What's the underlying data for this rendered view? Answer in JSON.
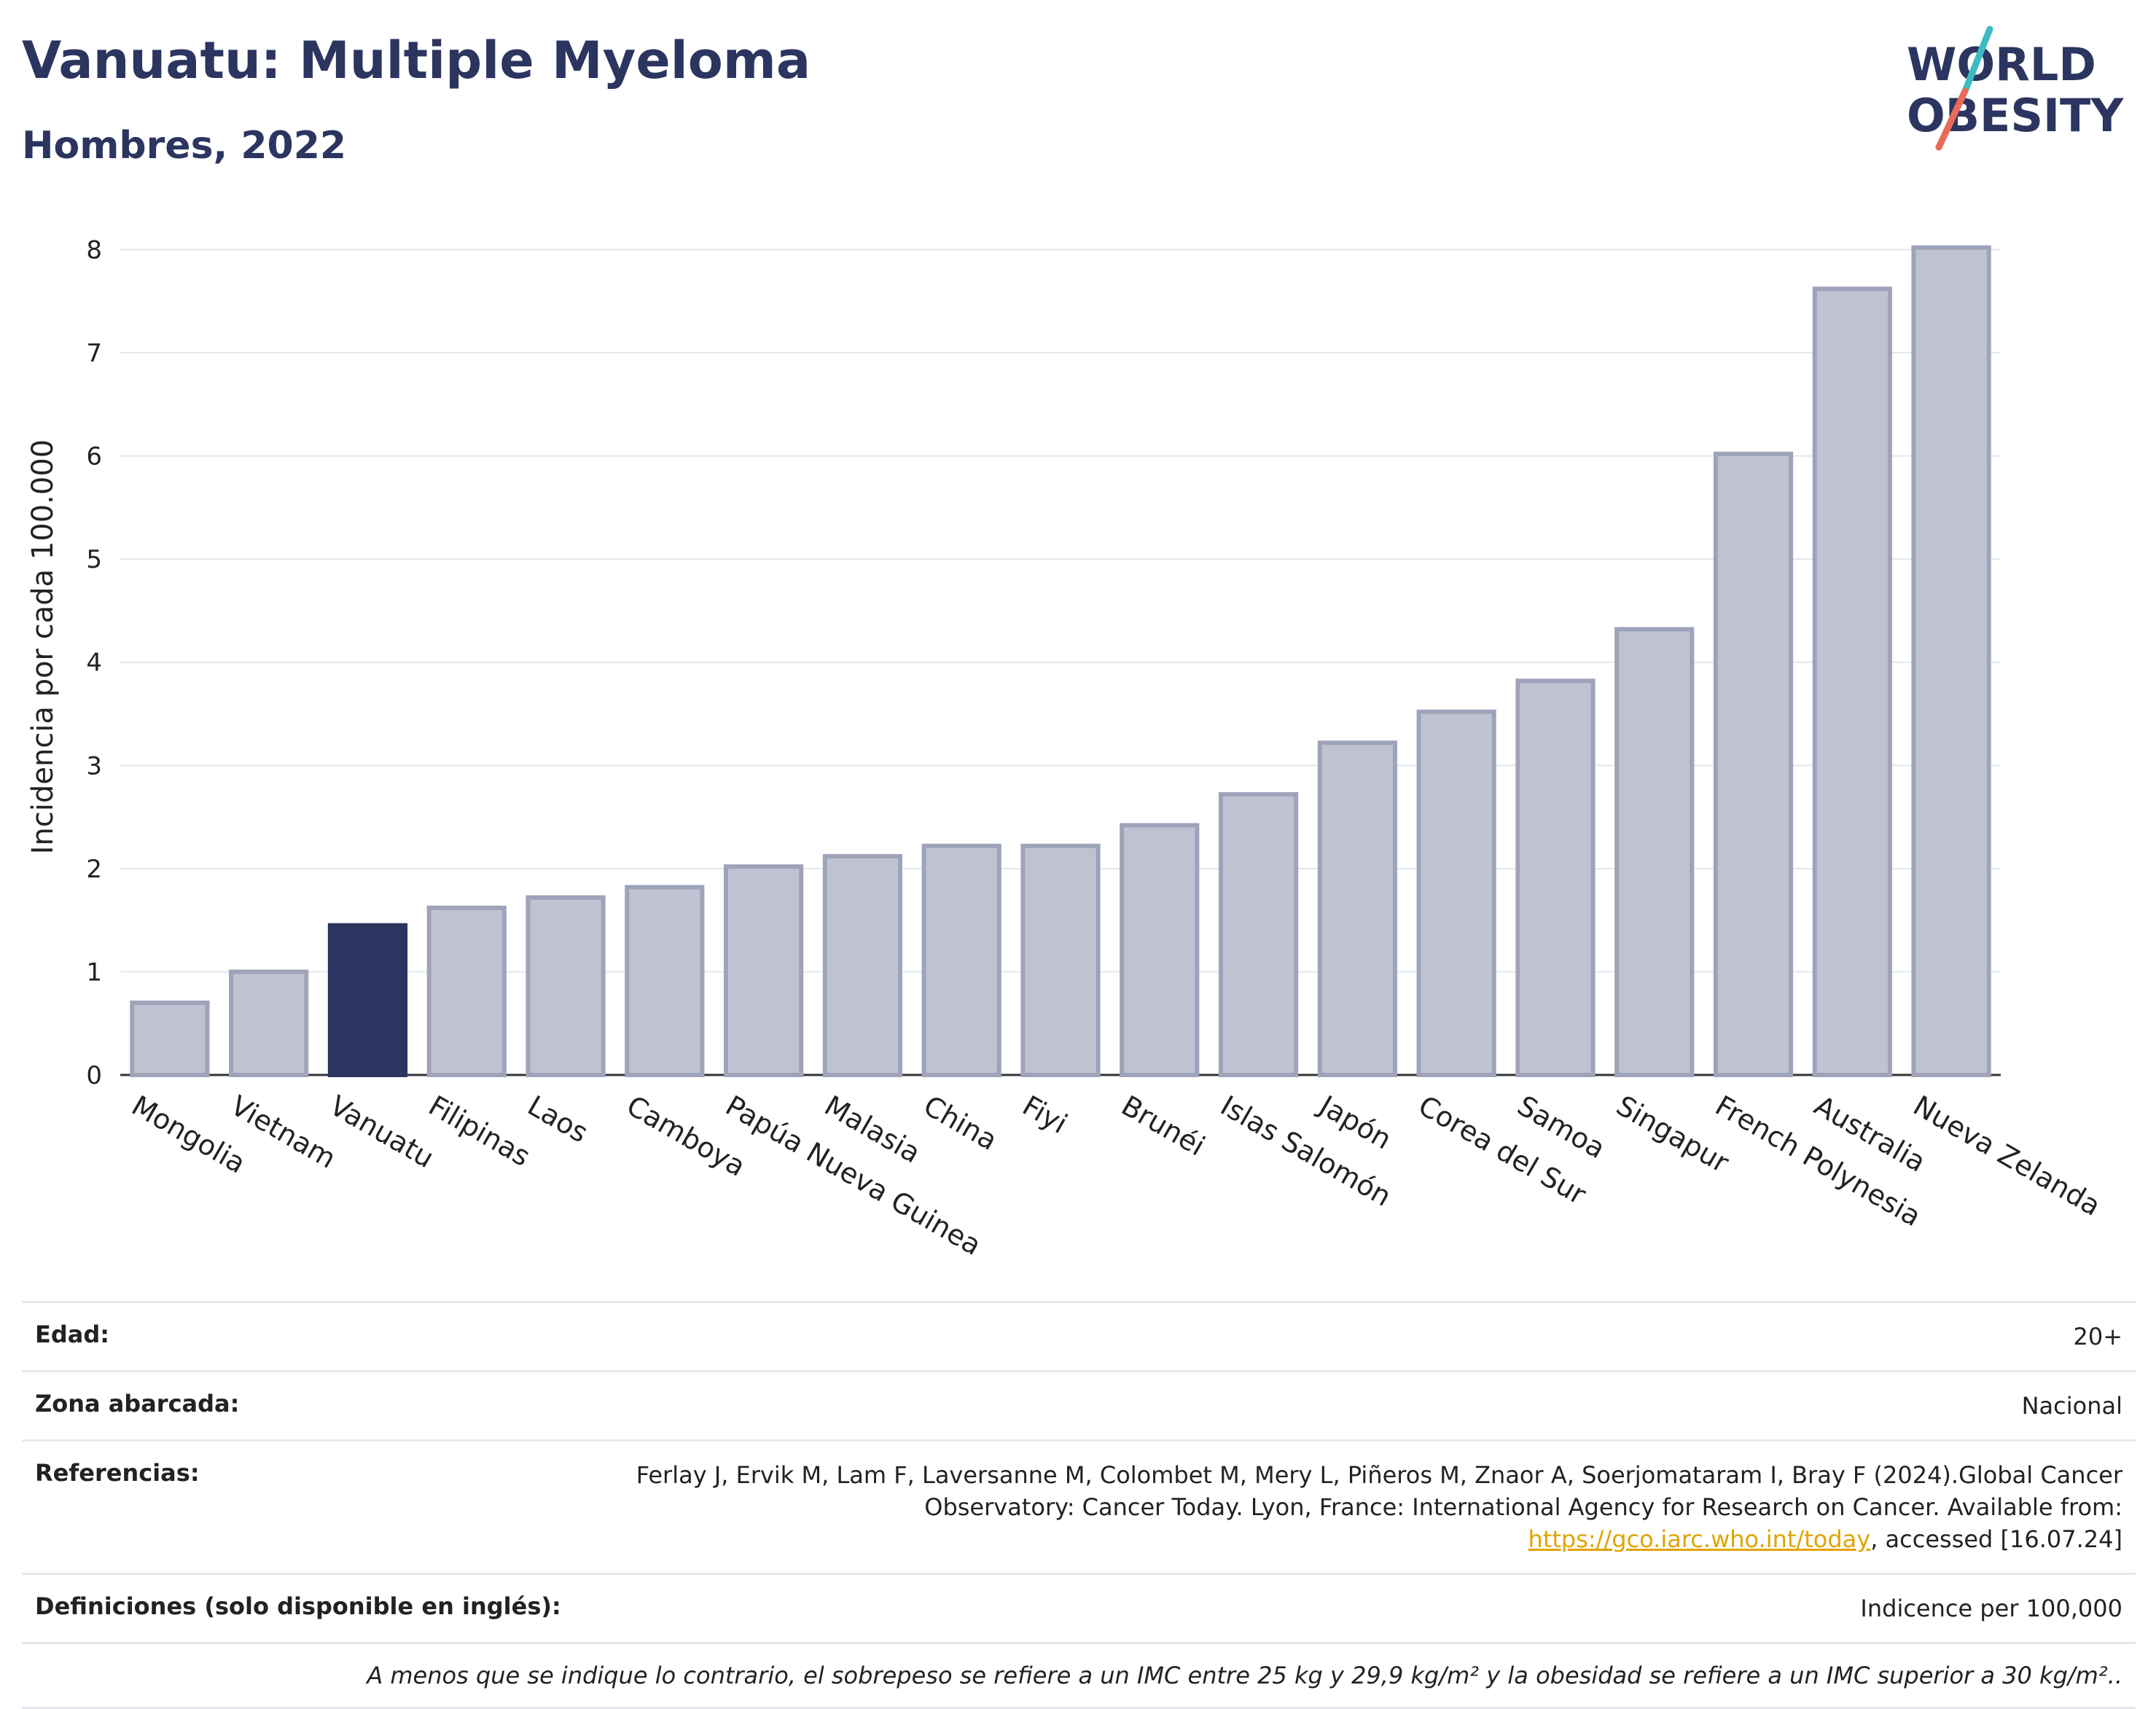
{
  "header": {
    "title": "Vanuatu: Multiple Myeloma",
    "subtitle": "Hombres, 2022"
  },
  "logo": {
    "line1": "WORLD",
    "line2": "OBESITY"
  },
  "colors": {
    "highlight": "#2b3560",
    "bar": "#bfc3d1",
    "bar_border": "#9ea3ba",
    "link": "#e0a400"
  },
  "chart_data": {
    "type": "bar",
    "categories": [
      "Mongolia",
      "Vietnam",
      "Vanuatu",
      "Filipinas",
      "Laos",
      "Camboya",
      "Papúa Nueva Guinea",
      "Malasia",
      "China",
      "Fiyi",
      "Brunéi",
      "Islas Salomón",
      "Japón",
      "Corea del Sur",
      "Samoa",
      "Singapur",
      "French Polynesia",
      "Australia",
      "Nueva Zelanda"
    ],
    "values": [
      0.7,
      1.0,
      1.45,
      1.62,
      1.72,
      1.82,
      2.02,
      2.12,
      2.22,
      2.22,
      2.42,
      2.72,
      3.22,
      3.52,
      3.82,
      4.32,
      6.02,
      7.62,
      8.02
    ],
    "highlight": "Vanuatu",
    "ylabel": "Incidencia por cada 100.000",
    "xlabel": "",
    "ylim": [
      0,
      8.3
    ],
    "yticks": [
      0,
      1,
      2,
      3,
      4,
      5,
      6,
      7,
      8
    ],
    "grid": true
  },
  "meta": {
    "rows": [
      {
        "key": "Edad:",
        "value": "20+"
      },
      {
        "key": "Zona abarcada:",
        "value": "Nacional"
      },
      {
        "key": "Referencias:",
        "value_pre": "Ferlay J, Ervik M, Lam F, Laversanne M, Colombet M, Mery L, Piñeros M, Znaor A, Soerjomataram I, Bray F (2024).Global Cancer Observatory: Cancer Today. Lyon, France: International Agency for Research on Cancer. Available from: ",
        "link": "https://gco.iarc.who.int/today",
        "value_post": ", accessed [16.07.24]"
      },
      {
        "key": "Definiciones (solo disponible en inglés):",
        "value": "Indicence per 100,000"
      }
    ],
    "note": "A menos que se indique lo contrario, el sobrepeso se refiere a un IMC entre 25 kg y 29,9 kg/m² y la obesidad se refiere a un IMC superior a 30 kg/m².."
  }
}
